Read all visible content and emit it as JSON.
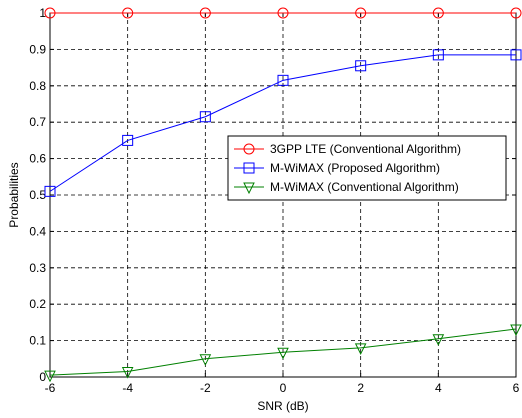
{
  "chart_data": {
    "type": "line",
    "xlabel": "SNR (dB)",
    "ylabel": "Probabilities",
    "x": [
      -6,
      -4,
      -2,
      0,
      2,
      4,
      6
    ],
    "xlim": [
      -6,
      6
    ],
    "ylim": [
      0,
      1
    ],
    "xticks": [
      "-6",
      "-4",
      "-2",
      "0",
      "2",
      "4",
      "6"
    ],
    "yticks": [
      "0",
      "0.1",
      "0.2",
      "0.3",
      "0.4",
      "0.5",
      "0.6",
      "0.7",
      "0.8",
      "0.9",
      "1"
    ],
    "grid": true,
    "legend_position": "middle-right",
    "series": [
      {
        "name": "3GPP LTE (Conventional Algorithm)",
        "color": "#ff0000",
        "marker": "circle",
        "values": [
          1.0,
          1.0,
          1.0,
          1.0,
          1.0,
          1.0,
          1.0
        ]
      },
      {
        "name": "M-WiMAX (Proposed Algorithm)",
        "color": "#0000ff",
        "marker": "square",
        "values": [
          0.51,
          0.65,
          0.715,
          0.815,
          0.855,
          0.885,
          0.885
        ]
      },
      {
        "name": "M-WiMAX (Conventional Algorithm)",
        "color": "#008000",
        "marker": "triangle-down",
        "values": [
          0.005,
          0.015,
          0.05,
          0.068,
          0.08,
          0.105,
          0.132
        ]
      }
    ]
  }
}
